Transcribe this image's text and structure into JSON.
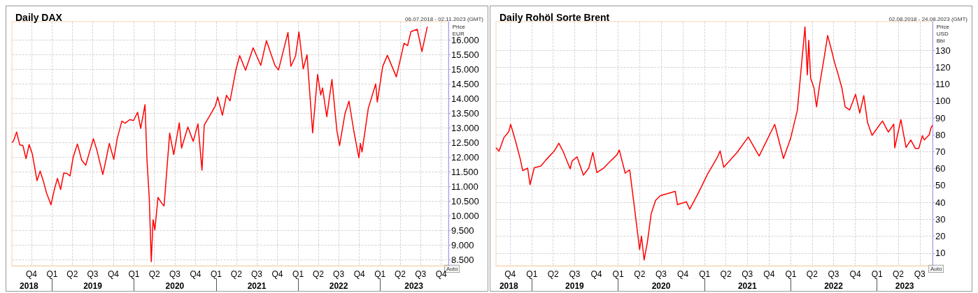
{
  "chart_data": [
    {
      "type": "line",
      "title": "Daily DAX",
      "subtitle": "06.07.2018 - 02.11.2023 (GMT)",
      "ylabel": "Price EUR",
      "annotations": [
        "Auto"
      ],
      "grid": true,
      "marker": "none",
      "color": "#ff0000",
      "x": [
        "2018-07-06",
        "2018-07-13",
        "2018-07-27",
        "2018-08-10",
        "2018-08-24",
        "2018-09-07",
        "2018-09-21",
        "2018-10-05",
        "2018-10-26",
        "2018-11-09",
        "2018-11-23",
        "2018-12-07",
        "2018-12-27",
        "2019-01-11",
        "2019-01-25",
        "2019-02-08",
        "2019-02-22",
        "2019-03-08",
        "2019-03-22",
        "2019-04-05",
        "2019-04-24",
        "2019-05-13",
        "2019-05-31",
        "2019-06-14",
        "2019-07-04",
        "2019-07-19",
        "2019-08-15",
        "2019-08-30",
        "2019-09-13",
        "2019-10-03",
        "2019-10-18",
        "2019-11-08",
        "2019-11-22",
        "2019-12-13",
        "2019-12-30",
        "2020-01-17",
        "2020-01-31",
        "2020-02-19",
        "2020-02-28",
        "2020-03-09",
        "2020-03-18",
        "2020-03-26",
        "2020-04-03",
        "2020-04-17",
        "2020-05-01",
        "2020-05-14",
        "2020-06-08",
        "2020-06-26",
        "2020-07-21",
        "2020-07-31",
        "2020-08-28",
        "2020-09-21",
        "2020-10-12",
        "2020-10-30",
        "2020-11-09",
        "2020-12-01",
        "2020-12-29",
        "2021-01-08",
        "2021-01-29",
        "2021-02-16",
        "2021-03-04",
        "2021-03-31",
        "2021-04-16",
        "2021-05-12",
        "2021-06-15",
        "2021-07-19",
        "2021-08-13",
        "2021-09-20",
        "2021-10-06",
        "2021-11-17",
        "2021-11-30",
        "2021-12-21",
        "2022-01-05",
        "2022-01-24",
        "2022-02-10",
        "2022-03-07",
        "2022-03-29",
        "2022-04-12",
        "2022-04-20",
        "2022-05-09",
        "2022-06-01",
        "2022-06-23",
        "2022-07-05",
        "2022-07-29",
        "2022-08-16",
        "2022-09-07",
        "2022-09-29",
        "2022-10-06",
        "2022-10-13",
        "2022-11-10",
        "2022-12-13",
        "2022-12-20",
        "2023-01-13",
        "2023-02-03",
        "2023-03-15",
        "2023-04-18",
        "2023-05-04",
        "2023-05-19",
        "2023-06-16",
        "2023-07-07",
        "2023-07-31"
      ],
      "values": [
        12500,
        12550,
        12860,
        12420,
        12400,
        11950,
        12430,
        12110,
        11200,
        11530,
        11190,
        10790,
        10380,
        10890,
        11280,
        10900,
        11460,
        11450,
        11360,
        12000,
        12450,
        11900,
        11730,
        12100,
        12630,
        12260,
        11410,
        11940,
        12470,
        11930,
        12630,
        13230,
        13160,
        13280,
        13250,
        13530,
        12980,
        13790,
        11890,
        10620,
        8440,
        9870,
        9520,
        10630,
        10460,
        10340,
        12820,
        12090,
        13170,
        12310,
        13030,
        12540,
        13140,
        11560,
        13100,
        13380,
        13760,
        14050,
        13430,
        14110,
        13920,
        15010,
        15460,
        14960,
        15730,
        15130,
        15970,
        15130,
        14970,
        16250,
        15100,
        15450,
        16270,
        15010,
        15490,
        12830,
        14820,
        14120,
        14360,
        13380,
        14650,
        12910,
        12400,
        13480,
        13910,
        12870,
        11980,
        12470,
        12180,
        13670,
        14500,
        13880,
        15090,
        15470,
        14740,
        15880,
        15800,
        16280,
        16360,
        15600,
        16450
      ],
      "xlim": [
        "2018-07-06",
        "2023-11-02"
      ],
      "ylim": [
        8300,
        16620
      ],
      "xticks": [
        {
          "value": "2018-10-01",
          "label": "Q4"
        },
        {
          "value": "2019-01-01",
          "label": "Q1"
        },
        {
          "value": "2019-04-01",
          "label": "Q2"
        },
        {
          "value": "2019-07-01",
          "label": "Q3"
        },
        {
          "value": "2019-10-01",
          "label": "Q4"
        },
        {
          "value": "2020-01-01",
          "label": "Q1"
        },
        {
          "value": "2020-04-01",
          "label": "Q2"
        },
        {
          "value": "2020-07-01",
          "label": "Q3"
        },
        {
          "value": "2020-10-01",
          "label": "Q4"
        },
        {
          "value": "2021-01-01",
          "label": "Q1"
        },
        {
          "value": "2021-04-01",
          "label": "Q2"
        },
        {
          "value": "2021-07-01",
          "label": "Q3"
        },
        {
          "value": "2021-10-01",
          "label": "Q4"
        },
        {
          "value": "2022-01-01",
          "label": "Q1"
        },
        {
          "value": "2022-04-01",
          "label": "Q2"
        },
        {
          "value": "2022-07-01",
          "label": "Q3"
        },
        {
          "value": "2022-10-01",
          "label": "Q4"
        },
        {
          "value": "2023-01-01",
          "label": "Q1"
        },
        {
          "value": "2023-04-01",
          "label": "Q2"
        },
        {
          "value": "2023-07-01",
          "label": "Q3"
        },
        {
          "value": "2023-10-01",
          "label": "Q4"
        }
      ],
      "x2lim": [
        "2018-07-06",
        "2023-11-02"
      ],
      "x2ticks": [
        {
          "value": "2018-09-20",
          "label": "2018"
        },
        {
          "value": "2019-01-01",
          "label": null
        },
        {
          "value": "2019-07-01",
          "label": "2019"
        },
        {
          "value": "2020-01-01",
          "label": null
        },
        {
          "value": "2020-07-01",
          "label": "2020"
        },
        {
          "value": "2021-01-01",
          "label": null
        },
        {
          "value": "2021-07-01",
          "label": "2021"
        },
        {
          "value": "2022-01-01",
          "label": null
        },
        {
          "value": "2022-07-01",
          "label": "2022"
        },
        {
          "value": "2023-01-01",
          "label": null
        },
        {
          "value": "2023-06-01",
          "label": "2023"
        }
      ],
      "yticks": [
        {
          "value": 8500,
          "label": "8.500"
        },
        {
          "value": 9000,
          "label": "9.000"
        },
        {
          "value": 9500,
          "label": "9.500"
        },
        {
          "value": 10000,
          "label": "10.000"
        },
        {
          "value": 10500,
          "label": "10.500"
        },
        {
          "value": 11000,
          "label": "11.000"
        },
        {
          "value": 11500,
          "label": "11.500"
        },
        {
          "value": 12000,
          "label": "12.000"
        },
        {
          "value": 12500,
          "label": "12.500"
        },
        {
          "value": 13000,
          "label": "13.000"
        },
        {
          "value": 13500,
          "label": "13.500"
        },
        {
          "value": 14000,
          "label": "14.000"
        },
        {
          "value": 14500,
          "label": "14.500"
        },
        {
          "value": 15000,
          "label": "15.000"
        },
        {
          "value": 15500,
          "label": "15.500"
        },
        {
          "value": 16000,
          "label": "16.000"
        }
      ]
    },
    {
      "type": "line",
      "title": "Daily Rohöl Sorte Brent",
      "subtitle": "02.08.2018 - 24.08.2023 (GMT)",
      "ylabel": "Price USD Bbl",
      "annotations": [
        "Auto"
      ],
      "grid": true,
      "marker": "none",
      "color": "#ff0000",
      "x": [
        "2018-08-02",
        "2018-08-15",
        "2018-09-04",
        "2018-09-25",
        "2018-10-03",
        "2018-10-24",
        "2018-11-13",
        "2018-11-23",
        "2018-12-14",
        "2018-12-24",
        "2019-01-11",
        "2019-02-08",
        "2019-03-01",
        "2019-04-05",
        "2019-04-25",
        "2019-05-13",
        "2019-06-12",
        "2019-06-20",
        "2019-07-11",
        "2019-08-07",
        "2019-08-30",
        "2019-09-16",
        "2019-10-03",
        "2019-10-31",
        "2019-11-22",
        "2019-12-27",
        "2020-01-06",
        "2020-01-31",
        "2020-02-19",
        "2020-03-11",
        "2020-03-22",
        "2020-04-01",
        "2020-04-09",
        "2020-04-20",
        "2020-05-04",
        "2020-05-20",
        "2020-06-08",
        "2020-06-28",
        "2020-08-30",
        "2020-09-08",
        "2020-10-16",
        "2020-10-30",
        "2020-12-03",
        "2020-12-28",
        "2021-01-13",
        "2021-02-25",
        "2021-03-08",
        "2021-03-23",
        "2021-05-18",
        "2021-07-05",
        "2021-08-20",
        "2021-10-25",
        "2021-12-01",
        "2021-12-31",
        "2022-01-29",
        "2022-03-02",
        "2022-03-12",
        "2022-03-18",
        "2022-03-26",
        "2022-04-09",
        "2022-04-20",
        "2022-05-03",
        "2022-05-21",
        "2022-06-06",
        "2022-06-22",
        "2022-07-05",
        "2022-07-18",
        "2022-08-05",
        "2022-08-19",
        "2022-09-07",
        "2022-10-02",
        "2022-10-20",
        "2022-11-06",
        "2022-11-22",
        "2022-12-11",
        "2023-01-24",
        "2023-02-18",
        "2023-03-13",
        "2023-03-17",
        "2023-04-12",
        "2023-05-04",
        "2023-05-24",
        "2023-06-12",
        "2023-06-27",
        "2023-07-12",
        "2023-07-20",
        "2023-08-10",
        "2023-08-17",
        "2023-08-24"
      ],
      "values": [
        72.4,
        70.3,
        78.2,
        81.9,
        86.2,
        76.2,
        65.5,
        58.8,
        60.3,
        50.5,
        60.5,
        61.5,
        65.1,
        70.3,
        75,
        70.2,
        59.9,
        64.5,
        67,
        56.2,
        60.4,
        69.6,
        57.7,
        60.2,
        63.4,
        68.2,
        71,
        57.3,
        59.3,
        36,
        23.6,
        12.1,
        20.1,
        5.9,
        16.5,
        33.4,
        41.3,
        44,
        46.6,
        38.7,
        40.4,
        36,
        44.9,
        52,
        56.6,
        67,
        70.5,
        60.8,
        69.5,
        78.7,
        67.5,
        86.2,
        66,
        77.8,
        94.7,
        143.9,
        115.4,
        136,
        113.5,
        107.9,
        96.6,
        109.7,
        124.7,
        138.8,
        130.4,
        122.9,
        117,
        107.9,
        96.6,
        94.7,
        104,
        92.9,
        103.2,
        87.2,
        79.7,
        88.2,
        81.6,
        86.3,
        72.3,
        89,
        72.5,
        77,
        72,
        72,
        79.5,
        77,
        80,
        84,
        85.6
      ],
      "xlim": [
        "2018-08-02",
        "2023-08-24"
      ],
      "ylim": [
        2.5,
        147
      ],
      "xticks": [
        {
          "value": "2018-10-01",
          "label": "Q4"
        },
        {
          "value": "2019-01-01",
          "label": "Q1"
        },
        {
          "value": "2019-04-01",
          "label": "Q2"
        },
        {
          "value": "2019-07-01",
          "label": "Q3"
        },
        {
          "value": "2019-10-01",
          "label": "Q4"
        },
        {
          "value": "2020-01-01",
          "label": "Q1"
        },
        {
          "value": "2020-04-01",
          "label": "Q2"
        },
        {
          "value": "2020-07-01",
          "label": "Q3"
        },
        {
          "value": "2020-10-01",
          "label": "Q4"
        },
        {
          "value": "2021-01-01",
          "label": "Q1"
        },
        {
          "value": "2021-04-01",
          "label": "Q2"
        },
        {
          "value": "2021-07-01",
          "label": "Q3"
        },
        {
          "value": "2021-10-01",
          "label": "Q4"
        },
        {
          "value": "2022-01-01",
          "label": "Q1"
        },
        {
          "value": "2022-04-01",
          "label": "Q2"
        },
        {
          "value": "2022-07-01",
          "label": "Q3"
        },
        {
          "value": "2022-10-01",
          "label": "Q4"
        },
        {
          "value": "2023-01-01",
          "label": "Q1"
        },
        {
          "value": "2023-04-01",
          "label": "Q2"
        },
        {
          "value": "2023-07-01",
          "label": "Q3"
        }
      ],
      "x2lim": [
        "2018-08-02",
        "2023-08-24"
      ],
      "x2ticks": [
        {
          "value": "2018-09-25",
          "label": "2018"
        },
        {
          "value": "2019-01-01",
          "label": null
        },
        {
          "value": "2019-07-01",
          "label": "2019"
        },
        {
          "value": "2020-01-01",
          "label": null
        },
        {
          "value": "2020-07-01",
          "label": "2020"
        },
        {
          "value": "2021-01-01",
          "label": null
        },
        {
          "value": "2021-07-01",
          "label": "2021"
        },
        {
          "value": "2022-01-01",
          "label": null
        },
        {
          "value": "2022-07-01",
          "label": "2022"
        },
        {
          "value": "2023-01-01",
          "label": null
        },
        {
          "value": "2023-04-28",
          "label": "2023"
        }
      ],
      "yticks": [
        10,
        20,
        30,
        40,
        50,
        60,
        70,
        80,
        90,
        100,
        110,
        120,
        130
      ]
    }
  ]
}
